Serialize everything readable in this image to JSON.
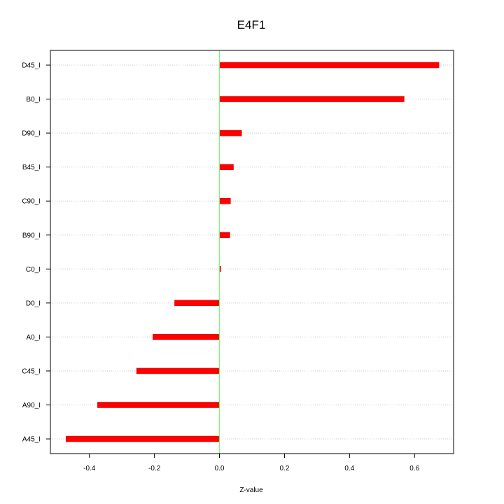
{
  "chart_data": {
    "type": "bar",
    "orientation": "horizontal",
    "title": "E4F1",
    "xlabel": "Z-value",
    "ylabel": "",
    "categories": [
      "D45_I",
      "B0_I",
      "D90_I",
      "B45_I",
      "C90_I",
      "B90_I",
      "C0_I",
      "D0_I",
      "A0_I",
      "C45_I",
      "A90_I",
      "A45_I"
    ],
    "values": [
      0.675,
      0.568,
      0.068,
      0.043,
      0.034,
      0.032,
      0.004,
      -0.138,
      -0.205,
      -0.255,
      -0.375,
      -0.472
    ],
    "xlim": [
      -0.52,
      0.72
    ],
    "xticks": [
      -0.4,
      -0.2,
      0.0,
      0.2,
      0.4,
      0.6
    ],
    "xtick_labels": [
      "-0.4",
      "-0.2",
      "0.0",
      "0.2",
      "0.4",
      "0.6"
    ],
    "grid": "horizontal dotted",
    "reference_line_x": 0,
    "colors": {
      "bar": "#ff0000",
      "bar_edge": "#cc0000",
      "zero_line": "#66ff66",
      "grid": "#c8c8c8",
      "axis": "#000000"
    }
  }
}
